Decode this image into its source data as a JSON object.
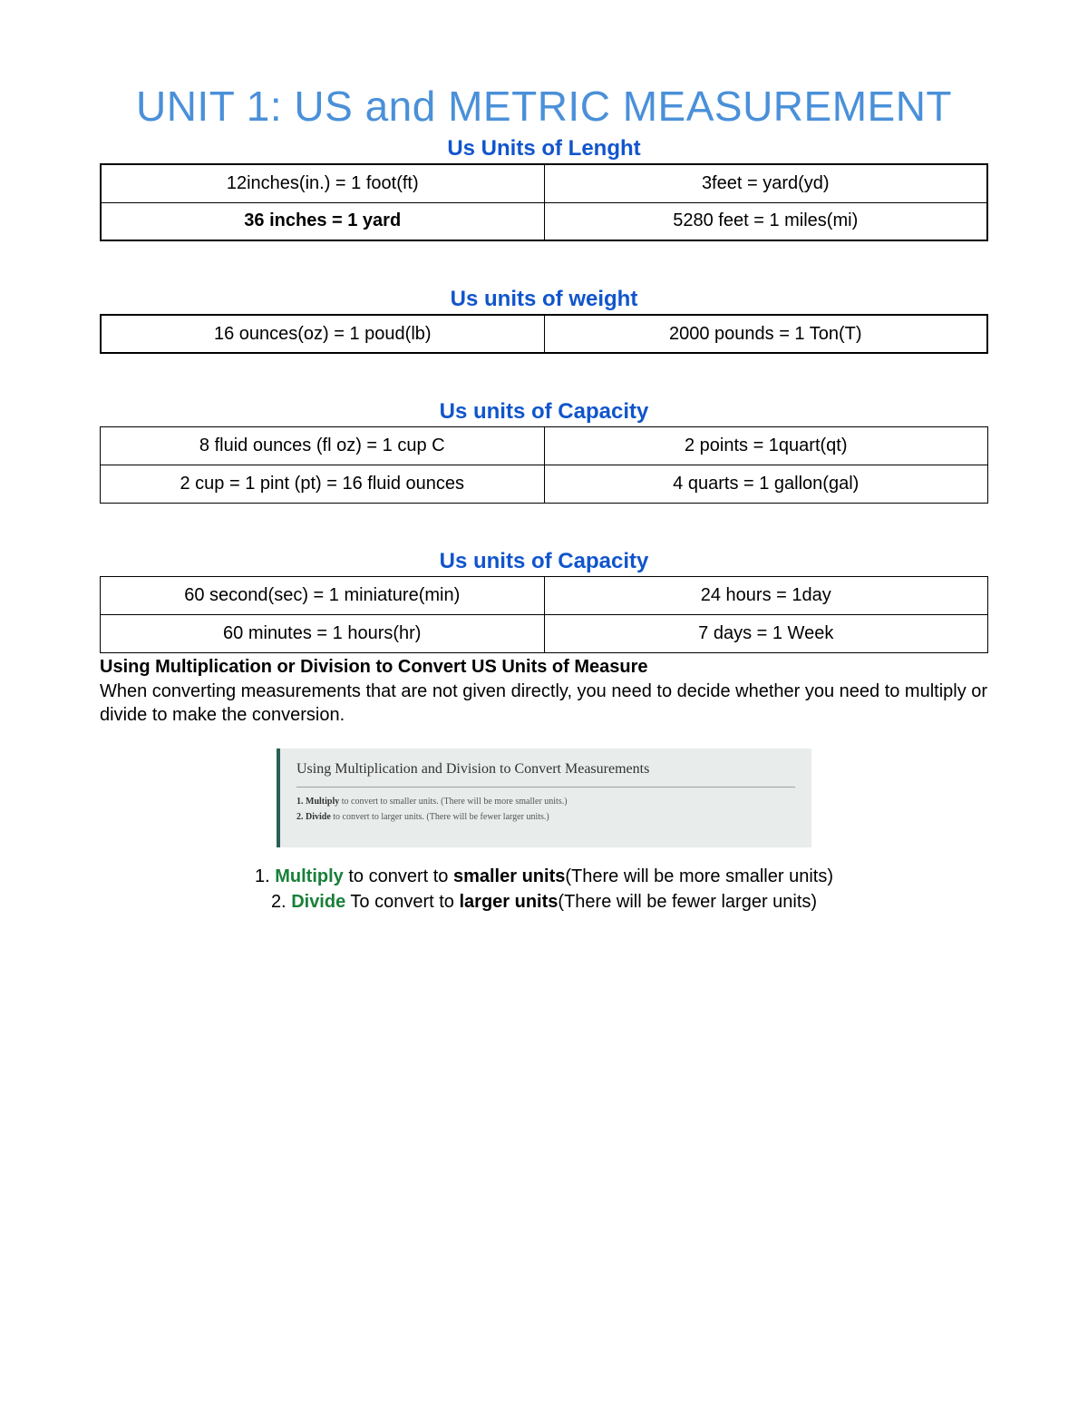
{
  "title": "UNIT 1: US and METRIC MEASUREMENT",
  "title_color": "#4a90d9",
  "heading_color": "#1155cc",
  "accent_green": "#188038",
  "border_color": "#000000",
  "length": {
    "heading": "Us Units of Lenght",
    "rows": [
      [
        "12inches(in.) = 1 foot(ft)",
        "3feet = yard(yd)"
      ],
      [
        "36 inches = 1 yard",
        "5280 feet = 1 miles(mi)"
      ]
    ],
    "bold_cells": [
      [
        1,
        0
      ]
    ]
  },
  "weight": {
    "heading": "Us units of weight",
    "rows": [
      [
        "16 ounces(oz) = 1 poud(lb)",
        "2000 pounds = 1 Ton(T)"
      ]
    ]
  },
  "capacity": {
    "heading": "Us units of Capacity",
    "rows": [
      [
        "8 fluid ounces (fl oz) = 1 cup C",
        "2 points = 1quart(qt)"
      ],
      [
        "2 cup = 1 pint (pt) = 16 fluid ounces",
        "4 quarts = 1 gallon(gal)"
      ]
    ]
  },
  "time": {
    "heading": "Us units of Capacity",
    "rows": [
      [
        "60 second(sec) = 1 miniature(min)",
        "24 hours = 1day"
      ],
      [
        "60 minutes = 1 hours(hr)",
        "7 days = 1 Week"
      ]
    ]
  },
  "convert_subtitle": "Using Multiplication or Division to Convert US Units of Measure",
  "convert_body": "When converting measurements that are not given directly, you need to decide whether you need to multiply or divide to make the conversion.",
  "greybox": {
    "title": "Using Multiplication and Division to Convert Measurements",
    "line1_bold": "1. Multiply",
    "line1_rest": " to convert to smaller units. (There will be more smaller units.)",
    "line2_bold": "2. Divide",
    "line2_rest": " to convert to larger units. (There will be fewer larger units.)",
    "bg_color": "#e8eceb",
    "bar_color": "#2b5f55"
  },
  "rules": {
    "line1_num": "1.  ",
    "line1_kw": "Multiply",
    "line1_mid": " to convert to ",
    "line1_bold": "smaller units",
    "line1_tail": "(There will be more smaller units)",
    "line2_num": "2.  ",
    "line2_kw": "Divide",
    "line2_mid": " To convert to ",
    "line2_bold": "larger units",
    "line2_tail": "(There will be fewer larger units)"
  }
}
